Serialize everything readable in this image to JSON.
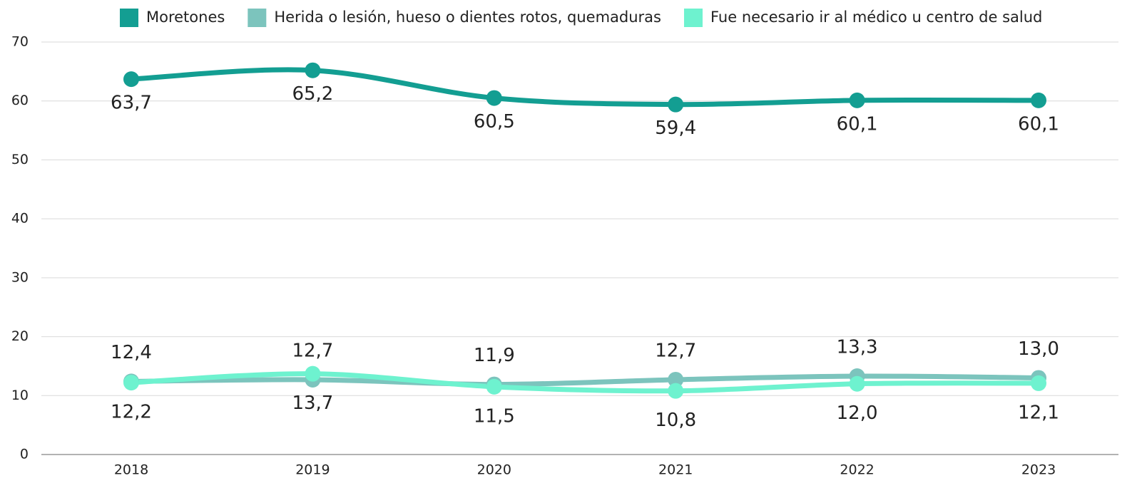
{
  "chart_data": {
    "type": "line",
    "categories": [
      "2018",
      "2019",
      "2020",
      "2021",
      "2022",
      "2023"
    ],
    "series": [
      {
        "name": "Moretones",
        "color": "#139e92",
        "values": [
          63.7,
          65.2,
          60.5,
          59.4,
          60.1,
          60.1
        ],
        "value_labels": [
          "63,7",
          "65,2",
          "60,5",
          "59,4",
          "60,1",
          "60,1"
        ]
      },
      {
        "name": "Herida o lesión, hueso o dientes rotos, quemaduras",
        "color": "#7cc4bd",
        "values": [
          12.4,
          12.7,
          11.9,
          12.7,
          13.3,
          13.0
        ],
        "value_labels": [
          "12,4",
          "12,7",
          "11,9",
          "12,7",
          "13,3",
          "13,0"
        ]
      },
      {
        "name": "Fue necesario ir al médico u centro de salud",
        "color": "#6ef2cf",
        "values": [
          12.2,
          13.7,
          11.5,
          10.8,
          12.0,
          12.1
        ],
        "value_labels": [
          "12,2",
          "13,7",
          "11,5",
          "10,8",
          "12,0",
          "12,1"
        ]
      }
    ],
    "ylim": [
      0,
      70
    ],
    "yticks": [
      0,
      10,
      20,
      30,
      40,
      50,
      60,
      70
    ],
    "grid": true
  }
}
